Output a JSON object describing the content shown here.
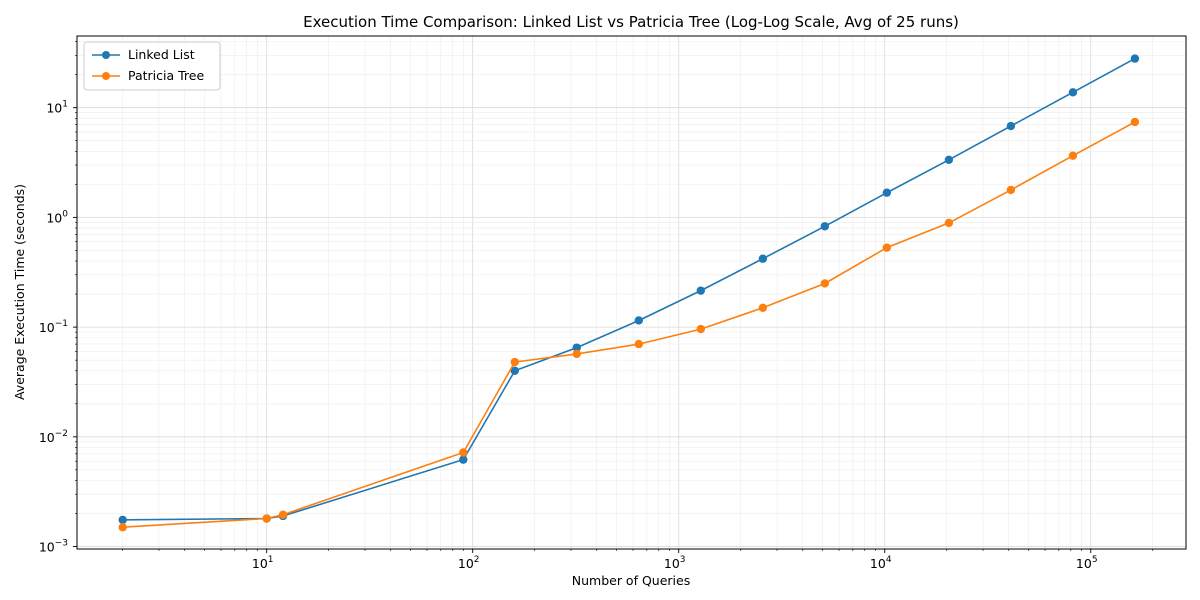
{
  "chart_data": {
    "type": "line",
    "title": "Execution Time Comparison: Linked List vs Patricia Tree (Log-Log Scale, Avg of 25 runs)",
    "xlabel": "Number of Queries",
    "ylabel": "Average Execution Time (seconds)",
    "xscale": "log",
    "yscale": "log",
    "xlim": [
      1.2,
      290000
    ],
    "ylim": [
      0.00095,
      45
    ],
    "grid": true,
    "legend_position": "top-left",
    "x_ticks": [
      {
        "base": "10",
        "exp": "1",
        "value": 10
      },
      {
        "base": "10",
        "exp": "2",
        "value": 100
      },
      {
        "base": "10",
        "exp": "3",
        "value": 1000
      },
      {
        "base": "10",
        "exp": "4",
        "value": 10000
      },
      {
        "base": "10",
        "exp": "5",
        "value": 100000
      }
    ],
    "y_ticks": [
      {
        "base": "10",
        "exp": "−3",
        "value": 0.001
      },
      {
        "base": "10",
        "exp": "−2",
        "value": 0.01
      },
      {
        "base": "10",
        "exp": "−1",
        "value": 0.1
      },
      {
        "base": "10",
        "exp": "0",
        "value": 1
      },
      {
        "base": "10",
        "exp": "1",
        "value": 10
      }
    ],
    "series": [
      {
        "name": "Linked List",
        "color": "#1f77b4",
        "x": [
          2,
          10,
          12,
          90,
          160,
          320,
          640,
          1280,
          2560,
          5120,
          10240,
          20480,
          40960,
          81920,
          163840
        ],
        "y": [
          0.00175,
          0.0018,
          0.0019,
          0.0062,
          0.04,
          0.065,
          0.115,
          0.215,
          0.42,
          0.83,
          1.68,
          3.35,
          6.8,
          13.8,
          28.0
        ]
      },
      {
        "name": "Patricia Tree",
        "color": "#ff7f0e",
        "x": [
          2,
          10,
          12,
          90,
          160,
          320,
          640,
          1280,
          2560,
          5120,
          10240,
          20480,
          40960,
          81920,
          163840
        ],
        "y": [
          0.0015,
          0.0018,
          0.00195,
          0.0072,
          0.048,
          0.057,
          0.07,
          0.096,
          0.15,
          0.25,
          0.53,
          0.89,
          1.78,
          3.65,
          7.4
        ]
      }
    ]
  }
}
